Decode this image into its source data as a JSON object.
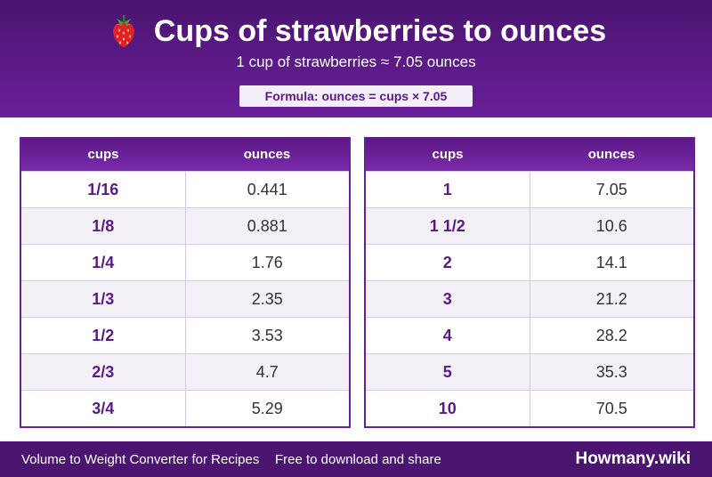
{
  "header": {
    "icon": "strawberry-icon",
    "title": "Cups of strawberries to ounces",
    "subtitle": "1 cup of strawberries ≈ 7.05 ounces",
    "formula": "Formula: ounces = cups × 7.05"
  },
  "tables": [
    {
      "col_cups": "cups",
      "col_ounces": "ounces",
      "rows": [
        {
          "cups": "1/16",
          "ounces": "0.441"
        },
        {
          "cups": "1/8",
          "ounces": "0.881"
        },
        {
          "cups": "1/4",
          "ounces": "1.76"
        },
        {
          "cups": "1/3",
          "ounces": "2.35"
        },
        {
          "cups": "1/2",
          "ounces": "3.53"
        },
        {
          "cups": "2/3",
          "ounces": "4.7"
        },
        {
          "cups": "3/4",
          "ounces": "5.29"
        }
      ]
    },
    {
      "col_cups": "cups",
      "col_ounces": "ounces",
      "rows": [
        {
          "cups": "1",
          "ounces": "7.05"
        },
        {
          "cups": "1 1/2",
          "ounces": "10.6"
        },
        {
          "cups": "2",
          "ounces": "14.1"
        },
        {
          "cups": "3",
          "ounces": "21.2"
        },
        {
          "cups": "4",
          "ounces": "28.2"
        },
        {
          "cups": "5",
          "ounces": "35.3"
        },
        {
          "cups": "10",
          "ounces": "70.5"
        }
      ]
    }
  ],
  "footer": {
    "left_text": "Volume to Weight Converter for Recipes",
    "middle_text": "Free to download and share",
    "brand": "Howmany.wiki"
  },
  "colors": {
    "header_bg": "#4a1470",
    "accent": "#6a1f9a",
    "cups_text": "#5a1a86",
    "row_alt": "#f4f0f8"
  }
}
